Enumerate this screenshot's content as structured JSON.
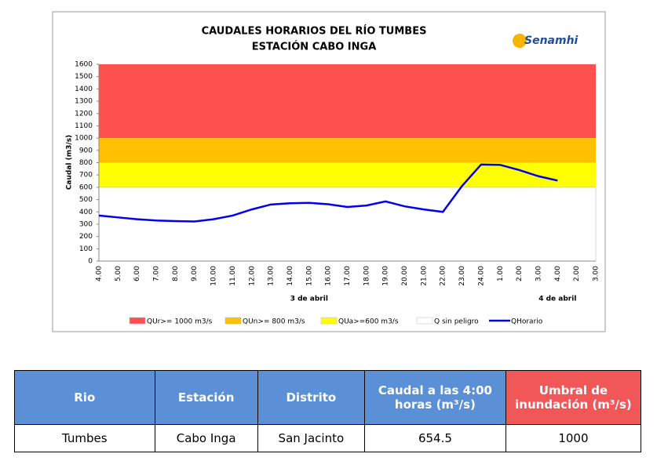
{
  "chart_data": {
    "type": "line",
    "title": "CAUDALES HORARIOS DEL RÍO TUMBES",
    "subtitle": "ESTACIÓN CABO INGA",
    "logo": "Senamhi",
    "y_label": "Caudal (m3/s)",
    "categories": [
      "4.00",
      "5.00",
      "6.00",
      "7.00",
      "8.00",
      "9.00",
      "10.00",
      "11.00",
      "12.00",
      "13.00",
      "14.00",
      "15.00",
      "16.00",
      "17.00",
      "18.00",
      "19.00",
      "20.00",
      "21.00",
      "22.00",
      "23.00",
      "24.00",
      "1.00",
      "2.00",
      "3.00",
      "4.00",
      "2.00",
      "3.00"
    ],
    "bands": [
      {
        "name": "QUr>= 1000 m3/s",
        "color": "#ff5050",
        "from": 1000,
        "to": 1600
      },
      {
        "name": "QUn>= 800 m3/s",
        "color": "#ffc000",
        "from": 800,
        "to": 1000
      },
      {
        "name": "QUa>=600 m3/s",
        "color": "#ffff00",
        "from": 600,
        "to": 800
      },
      {
        "name": "Q sin peligro",
        "color": "#ffffff",
        "from": 0,
        "to": 600
      }
    ],
    "series": [
      {
        "name": "QHorario",
        "color": "#0000ee",
        "values": [
          370,
          355,
          340,
          330,
          325,
          322,
          340,
          370,
          420,
          460,
          470,
          473,
          462,
          440,
          452,
          485,
          445,
          420,
          400,
          610,
          785,
          782,
          740,
          690,
          654.5,
          null,
          null
        ]
      }
    ],
    "annotations": [
      "3 de abril",
      "4 de abril"
    ],
    "ylim": [
      0,
      1600
    ],
    "yticks": [
      0,
      100,
      200,
      300,
      400,
      500,
      600,
      700,
      800,
      900,
      1000,
      1100,
      1200,
      1300,
      1400,
      1500,
      1600
    ],
    "grid": false
  },
  "table": {
    "headers": [
      "Rio",
      "Estación",
      "Distrito",
      "Caudal a las 4:00 horas (m³/s)",
      "Umbral de inundación (m³/s)"
    ],
    "rows": [
      [
        "Tumbes",
        "Cabo Inga",
        "San Jacinto",
        "654.5",
        "1000"
      ]
    ]
  }
}
